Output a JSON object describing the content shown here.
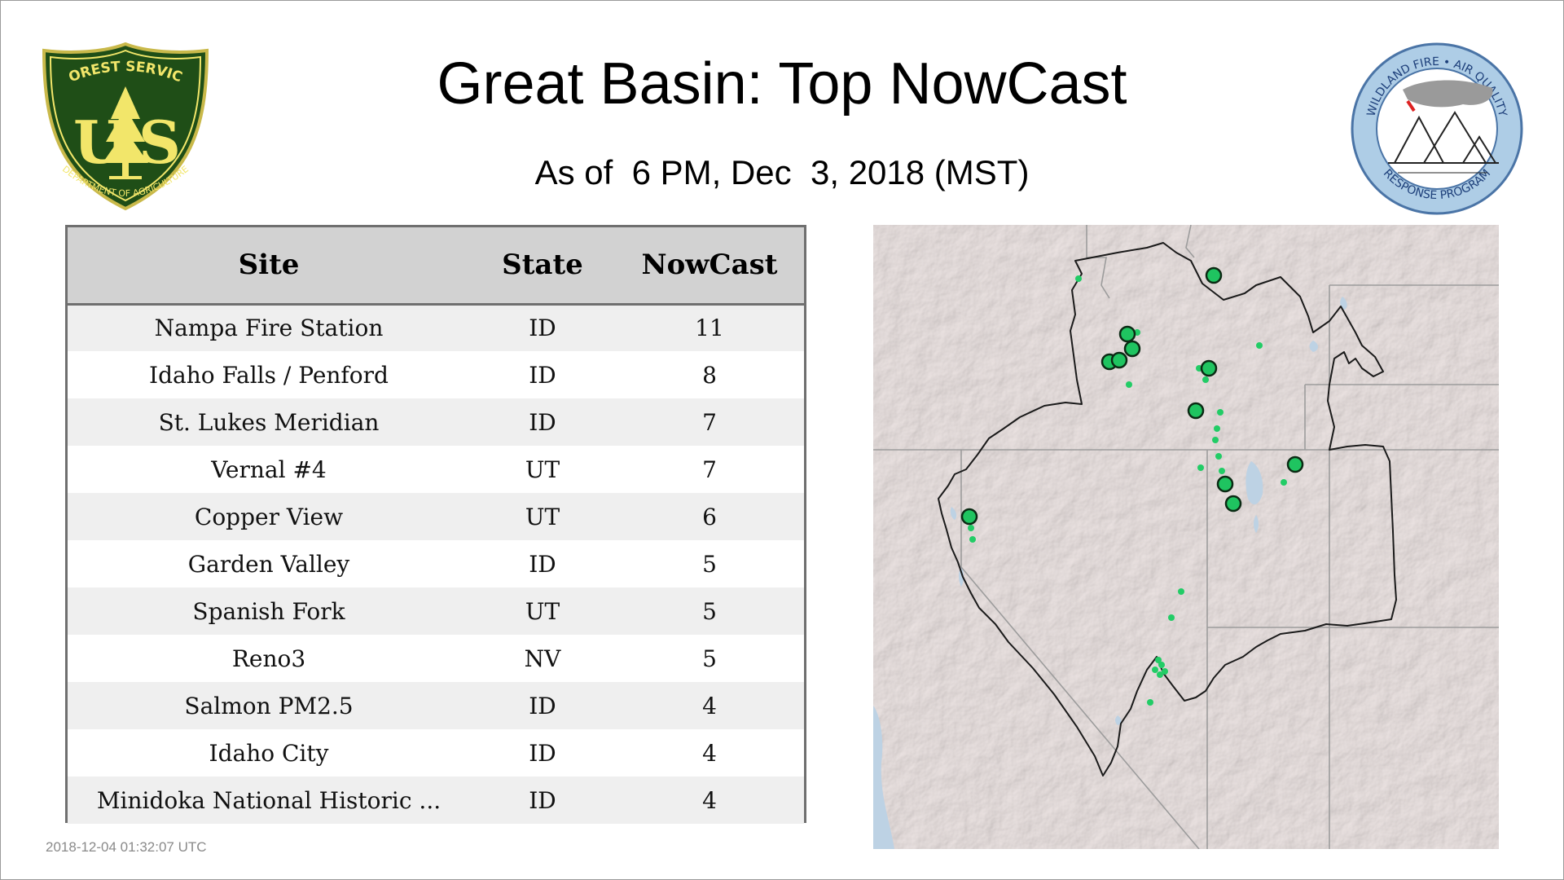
{
  "header": {
    "title": "Great Basin: Top NowCast",
    "subtitle": "As of  6 PM, Dec  3, 2018 (MST)"
  },
  "logos": {
    "left": {
      "icon": "forest-service-shield-icon",
      "text_top": "FOREST SERVICE",
      "letters": "U S",
      "text_bottom": "DEPARTMENT OF AGRICULTURE",
      "colors": {
        "green": "#1f4e17",
        "gold": "#f2e66a"
      }
    },
    "right": {
      "icon": "wildland-fire-air-quality-icon",
      "text_top": "WILDLAND FIRE • AIR QUALITY",
      "text_bottom": "RESPONSE PROGRAM",
      "colors": {
        "ring": "#aecde6",
        "ring_border": "#4a74a6"
      }
    }
  },
  "table": {
    "headers": [
      "Site",
      "State",
      "NowCast"
    ],
    "rows": [
      [
        "Nampa Fire Station",
        "ID",
        "11"
      ],
      [
        "Idaho Falls / Penford",
        "ID",
        "8"
      ],
      [
        "St. Lukes Meridian",
        "ID",
        "7"
      ],
      [
        "Vernal #4",
        "UT",
        "7"
      ],
      [
        "Copper View",
        "UT",
        "6"
      ],
      [
        "Garden Valley",
        "ID",
        "5"
      ],
      [
        "Spanish Fork",
        "UT",
        "5"
      ],
      [
        "Reno3",
        "NV",
        "5"
      ],
      [
        "Salmon PM2.5",
        "ID",
        "4"
      ],
      [
        "Idaho City",
        "ID",
        "4"
      ],
      [
        "Minidoka National Historic ...",
        "ID",
        "4"
      ]
    ]
  },
  "map": {
    "icon": "great-basin-map",
    "colors": {
      "land": "#e9e0df",
      "water": "#bdd2e4",
      "state_line": "#9c9c9c",
      "region_outline": "#1a1a1a",
      "marker_fill": "#1fc460",
      "marker_outline": "#0b2a14",
      "small_marker": "#22cc66"
    }
  },
  "footer": {
    "timestamp": "2018-12-04 01:32:07 UTC"
  }
}
